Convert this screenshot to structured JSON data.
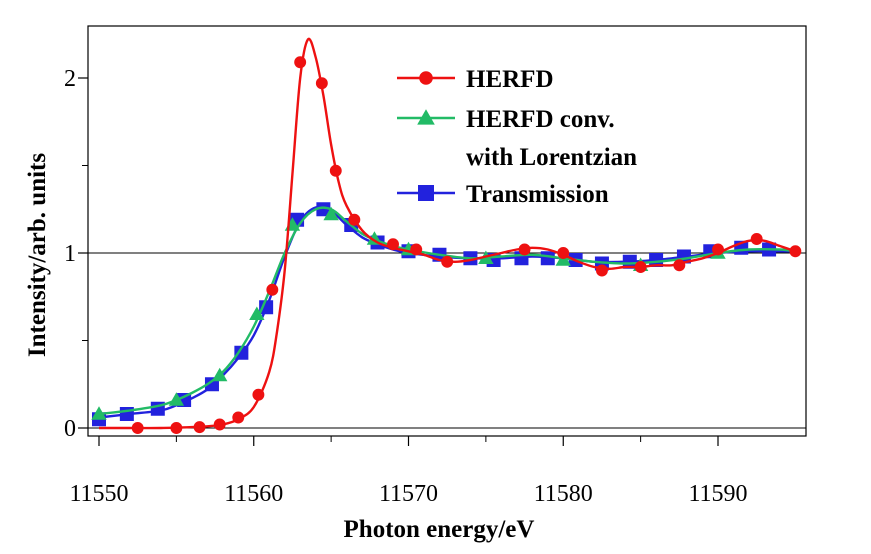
{
  "chart_data": {
    "type": "line",
    "title": "",
    "xlabel": "Photon energy/eV",
    "ylabel": "Intensity/arb. units",
    "xlim": [
      11550,
      11595
    ],
    "ylim": [
      -0.05,
      2.3
    ],
    "x_ticks": [
      "11550",
      "11560",
      "11570",
      "11580",
      "11590"
    ],
    "y_ticks": [
      "0",
      "1",
      "2"
    ],
    "reference_lines": [
      0,
      1
    ],
    "grid": false,
    "legend_position": "top-right",
    "series": [
      {
        "name": "HERFD",
        "color": "#ee1111",
        "marker": "circle",
        "curve": [
          [
            11550,
            0.0
          ],
          [
            11552,
            0.0
          ],
          [
            11554,
            0.0
          ],
          [
            11556,
            0.005
          ],
          [
            11557,
            0.01
          ],
          [
            11558,
            0.02
          ],
          [
            11559,
            0.05
          ],
          [
            11560,
            0.12
          ],
          [
            11561,
            0.32
          ],
          [
            11561.5,
            0.55
          ],
          [
            11562,
            0.9
          ],
          [
            11562.5,
            1.45
          ],
          [
            11563,
            2.0
          ],
          [
            11563.5,
            2.22
          ],
          [
            11564,
            2.12
          ],
          [
            11564.5,
            1.9
          ],
          [
            11565,
            1.62
          ],
          [
            11565.5,
            1.4
          ],
          [
            11566,
            1.27
          ],
          [
            11567,
            1.13
          ],
          [
            11568,
            1.06
          ],
          [
            11569,
            1.03
          ],
          [
            11570,
            1.01
          ],
          [
            11571,
            0.99
          ],
          [
            11572,
            0.96
          ],
          [
            11573,
            0.95
          ],
          [
            11574,
            0.96
          ],
          [
            11575,
            0.98
          ],
          [
            11576,
            1.0
          ],
          [
            11577,
            1.02
          ],
          [
            11578,
            1.03
          ],
          [
            11579,
            1.02
          ],
          [
            11580,
            0.99
          ],
          [
            11581,
            0.95
          ],
          [
            11582,
            0.92
          ],
          [
            11583,
            0.91
          ],
          [
            11584,
            0.92
          ],
          [
            11585,
            0.92
          ],
          [
            11586,
            0.93
          ],
          [
            11587,
            0.93
          ],
          [
            11588,
            0.95
          ],
          [
            11589,
            0.97
          ],
          [
            11590,
            1.0
          ],
          [
            11591,
            1.04
          ],
          [
            11592,
            1.07
          ],
          [
            11593,
            1.07
          ],
          [
            11594,
            1.04
          ],
          [
            11595,
            1.01
          ]
        ],
        "markers": [
          [
            11552.5,
            0.0
          ],
          [
            11555,
            0.0
          ],
          [
            11556.5,
            0.005
          ],
          [
            11557.8,
            0.02
          ],
          [
            11559,
            0.06
          ],
          [
            11560.3,
            0.19
          ],
          [
            11561.2,
            0.79
          ],
          [
            11563.0,
            2.09
          ],
          [
            11564.4,
            1.97
          ],
          [
            11565.3,
            1.47
          ],
          [
            11566.5,
            1.19
          ],
          [
            11569,
            1.05
          ],
          [
            11570.5,
            1.02
          ],
          [
            11572.5,
            0.95
          ],
          [
            11577.5,
            1.02
          ],
          [
            11580,
            1.0
          ],
          [
            11582.5,
            0.9
          ],
          [
            11585,
            0.92
          ],
          [
            11587.5,
            0.93
          ],
          [
            11590,
            1.02
          ],
          [
            11592.5,
            1.08
          ],
          [
            11595,
            1.01
          ]
        ]
      },
      {
        "name": "HERFD conv. with Lorentzian",
        "color": "#22bb66",
        "marker": "triangle",
        "curve": [
          [
            11550,
            0.08
          ],
          [
            11552,
            0.1
          ],
          [
            11554,
            0.13
          ],
          [
            11555,
            0.16
          ],
          [
            11556,
            0.2
          ],
          [
            11557,
            0.25
          ],
          [
            11558,
            0.32
          ],
          [
            11559,
            0.43
          ],
          [
            11560,
            0.58
          ],
          [
            11561,
            0.78
          ],
          [
            11562,
            1.0
          ],
          [
            11563,
            1.17
          ],
          [
            11564,
            1.25
          ],
          [
            11565,
            1.25
          ],
          [
            11566,
            1.18
          ],
          [
            11567,
            1.11
          ],
          [
            11568,
            1.07
          ],
          [
            11569,
            1.04
          ],
          [
            11570,
            1.02
          ],
          [
            11572,
            0.99
          ],
          [
            11574,
            0.97
          ],
          [
            11576,
            0.98
          ],
          [
            11578,
            0.99
          ],
          [
            11580,
            0.97
          ],
          [
            11582,
            0.95
          ],
          [
            11584,
            0.94
          ],
          [
            11586,
            0.95
          ],
          [
            11588,
            0.97
          ],
          [
            11590,
            1.0
          ],
          [
            11592,
            1.02
          ],
          [
            11594,
            1.02
          ],
          [
            11595,
            1.01
          ]
        ],
        "markers": [
          [
            11550,
            0.08
          ],
          [
            11555,
            0.16
          ],
          [
            11557.8,
            0.3
          ],
          [
            11560.2,
            0.65
          ],
          [
            11562.5,
            1.16
          ],
          [
            11565,
            1.22
          ],
          [
            11567.8,
            1.08
          ],
          [
            11570,
            1.02
          ],
          [
            11575,
            0.97
          ],
          [
            11580,
            0.96
          ],
          [
            11585,
            0.93
          ],
          [
            11590,
            1.0
          ]
        ]
      },
      {
        "name": "Transmission",
        "color": "#2222dd",
        "marker": "square",
        "curve": [
          [
            11550,
            0.06
          ],
          [
            11552,
            0.08
          ],
          [
            11554,
            0.1
          ],
          [
            11555,
            0.13
          ],
          [
            11556,
            0.17
          ],
          [
            11557,
            0.22
          ],
          [
            11558,
            0.3
          ],
          [
            11559,
            0.4
          ],
          [
            11560,
            0.53
          ],
          [
            11561,
            0.73
          ],
          [
            11562,
            0.98
          ],
          [
            11563,
            1.18
          ],
          [
            11564,
            1.26
          ],
          [
            11565,
            1.24
          ],
          [
            11566,
            1.16
          ],
          [
            11567,
            1.09
          ],
          [
            11568,
            1.05
          ],
          [
            11569,
            1.02
          ],
          [
            11570,
            1.0
          ],
          [
            11572,
            0.98
          ],
          [
            11574,
            0.97
          ],
          [
            11576,
            0.97
          ],
          [
            11578,
            0.98
          ],
          [
            11580,
            0.97
          ],
          [
            11582,
            0.95
          ],
          [
            11584,
            0.95
          ],
          [
            11586,
            0.96
          ],
          [
            11588,
            0.98
          ],
          [
            11590,
            1.0
          ],
          [
            11592,
            1.01
          ],
          [
            11594,
            1.01
          ],
          [
            11595,
            1.01
          ]
        ],
        "markers": [
          [
            11550,
            0.05
          ],
          [
            11551.8,
            0.08
          ],
          [
            11553.8,
            0.11
          ],
          [
            11555.5,
            0.16
          ],
          [
            11557.3,
            0.25
          ],
          [
            11559.2,
            0.43
          ],
          [
            11560.8,
            0.69
          ],
          [
            11562.8,
            1.19
          ],
          [
            11564.5,
            1.25
          ],
          [
            11566.3,
            1.16
          ],
          [
            11568,
            1.06
          ],
          [
            11570,
            1.01
          ],
          [
            11572,
            0.99
          ],
          [
            11574,
            0.97
          ],
          [
            11575.5,
            0.96
          ],
          [
            11577.3,
            0.97
          ],
          [
            11579,
            0.97
          ],
          [
            11580.8,
            0.96
          ],
          [
            11582.5,
            0.94
          ],
          [
            11584.3,
            0.95
          ],
          [
            11586,
            0.96
          ],
          [
            11587.8,
            0.98
          ],
          [
            11589.5,
            1.01
          ],
          [
            11591.5,
            1.03
          ],
          [
            11593.3,
            1.02
          ]
        ]
      }
    ]
  }
}
